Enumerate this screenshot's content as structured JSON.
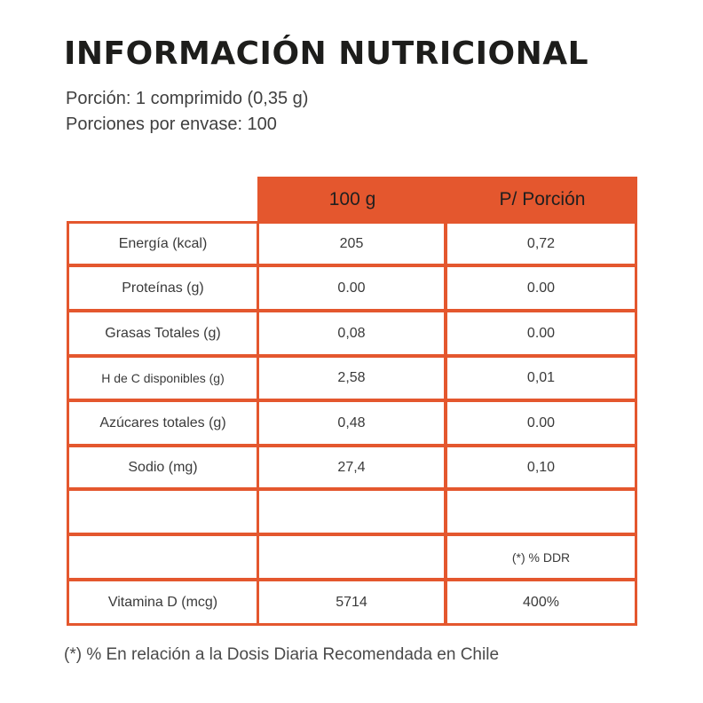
{
  "title": "INFORMACIÓN NUTRICIONAL",
  "serving_size": "Porción: 1 comprimido (0,35 g)",
  "servings_per_container": "Porciones por envase: 100",
  "table": {
    "columns": [
      "100 g",
      "P/ Porción"
    ],
    "rows": [
      {
        "label": "Energía (kcal)",
        "per100": "205",
        "perServing": "0,72"
      },
      {
        "label": "Proteínas (g)",
        "per100": "0.00",
        "perServing": "0.00"
      },
      {
        "label": "Grasas Totales (g)",
        "per100": "0,08",
        "perServing": "0.00"
      },
      {
        "label": "H de C disponibles (g)",
        "per100": "2,58",
        "perServing": "0,01"
      },
      {
        "label": "Azúcares totales (g)",
        "per100": "0,48",
        "perServing": "0.00"
      },
      {
        "label": "Sodio (mg)",
        "per100": "27,4",
        "perServing": "0,10"
      },
      {
        "label": "",
        "per100": "",
        "perServing": ""
      },
      {
        "label": "",
        "per100": "",
        "perServing": "(*) % DDR"
      },
      {
        "label": "Vitamina D (mcg)",
        "per100": "5714",
        "perServing": "400%"
      }
    ]
  },
  "footnote": "(*) % En relación a la Dosis Diaria Recomendada en Chile",
  "colors": {
    "accent": "#e4572e",
    "text": "#3a3a3a",
    "title": "#1d1d1b"
  }
}
